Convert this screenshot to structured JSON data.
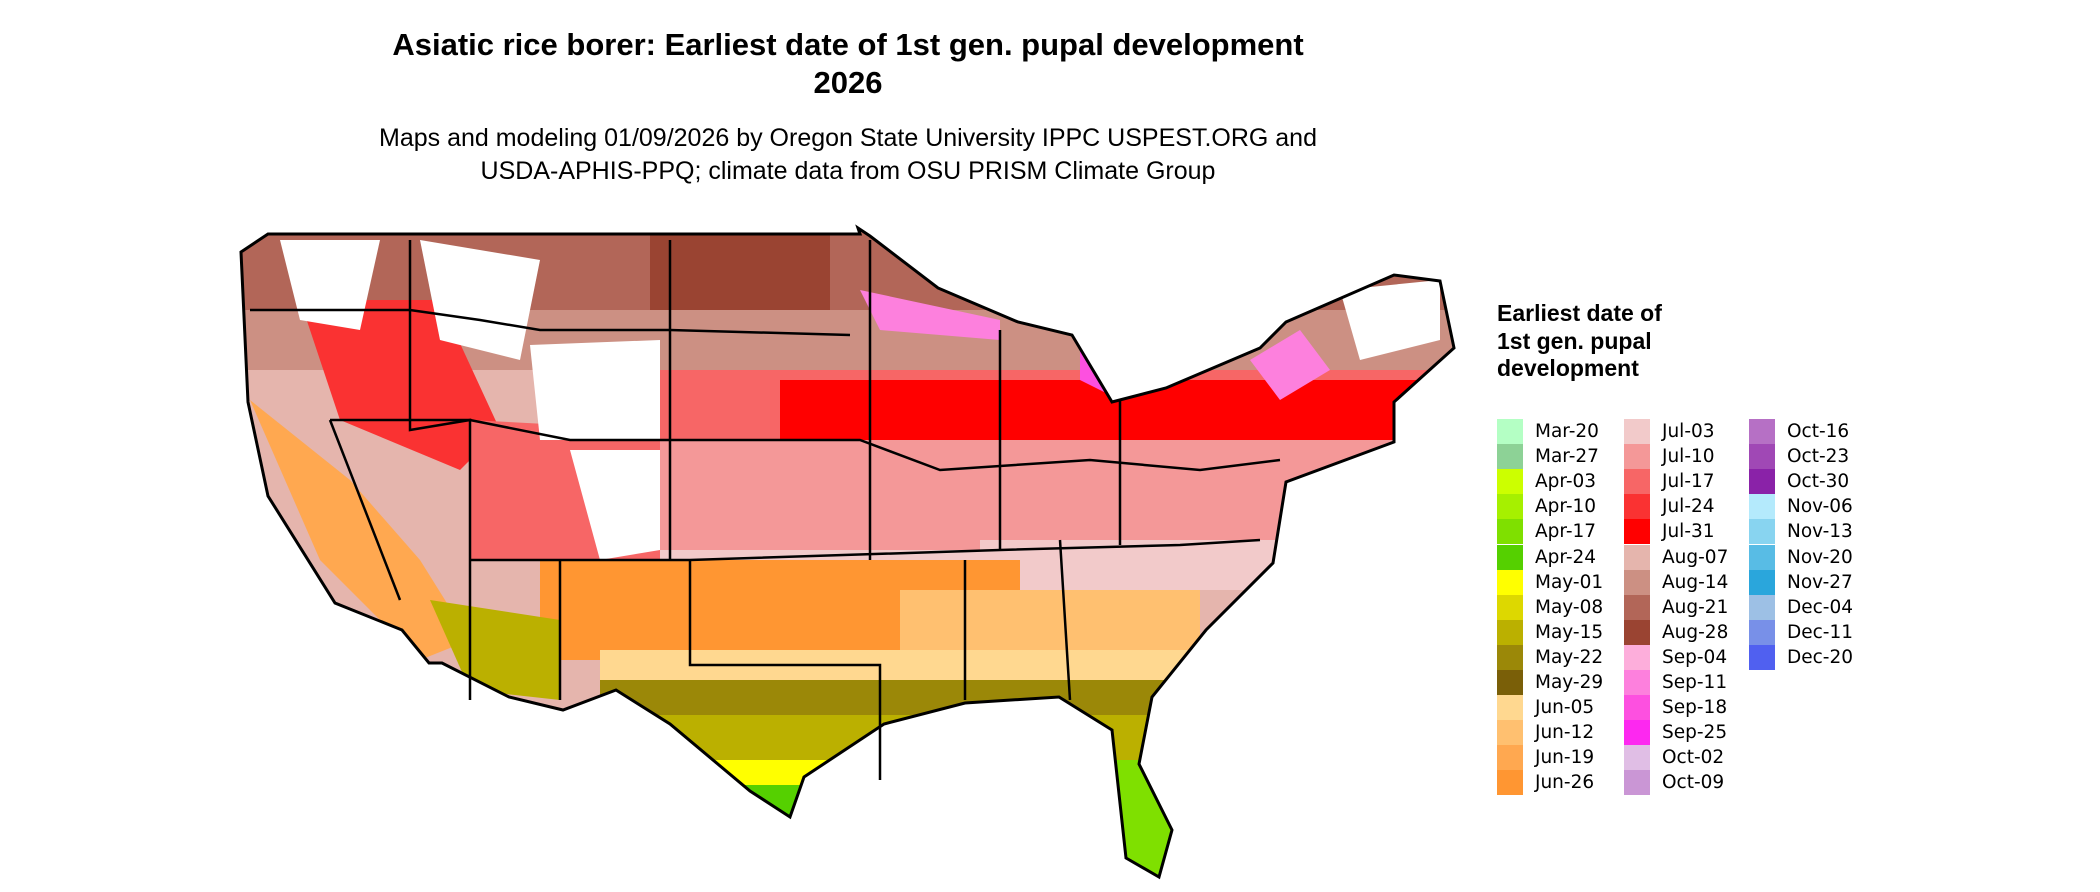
{
  "title": "Asiatic rice borer: Earliest date of 1st gen. pupal development",
  "title_year": "2026",
  "subtitle_line1": "Maps and modeling 01/09/2026 by Oregon State University IPPC USPEST.ORG and",
  "subtitle_line2": "USDA-APHIS-PPQ; climate data from OSU PRISM Climate Group",
  "legend": {
    "title": "Earliest date of 1st gen. pupal development",
    "items": [
      {
        "label": "Mar-20",
        "color": "#B4FFC4"
      },
      {
        "label": "Mar-27",
        "color": "#8DD296"
      },
      {
        "label": "Apr-03",
        "color": "#CCFF00"
      },
      {
        "label": "Apr-10",
        "color": "#A6F000"
      },
      {
        "label": "Apr-17",
        "color": "#7FE000"
      },
      {
        "label": "Apr-24",
        "color": "#55D000"
      },
      {
        "label": "May-01",
        "color": "#FFFF00"
      },
      {
        "label": "May-08",
        "color": "#DDD800"
      },
      {
        "label": "May-15",
        "color": "#BBB000"
      },
      {
        "label": "May-22",
        "color": "#9B8808"
      },
      {
        "label": "May-29",
        "color": "#7A5F08"
      },
      {
        "label": "Jun-05",
        "color": "#FFD890"
      },
      {
        "label": "Jun-12",
        "color": "#FFC070"
      },
      {
        "label": "Jun-19",
        "color": "#FFA850"
      },
      {
        "label": "Jun-26",
        "color": "#FF9632"
      },
      {
        "label": "Jul-03",
        "color": "#F2CACA"
      },
      {
        "label": "Jul-10",
        "color": "#F49898"
      },
      {
        "label": "Jul-17",
        "color": "#F76666"
      },
      {
        "label": "Jul-24",
        "color": "#FA3232"
      },
      {
        "label": "Jul-31",
        "color": "#FF0000"
      },
      {
        "label": "Aug-07",
        "color": "#E5B5AD"
      },
      {
        "label": "Aug-14",
        "color": "#CC9083"
      },
      {
        "label": "Aug-21",
        "color": "#B26658"
      },
      {
        "label": "Aug-28",
        "color": "#9A4432"
      },
      {
        "label": "Sep-04",
        "color": "#FDAEDB"
      },
      {
        "label": "Sep-11",
        "color": "#FD80DD"
      },
      {
        "label": "Sep-18",
        "color": "#FD50E0"
      },
      {
        "label": "Sep-25",
        "color": "#FD28F0"
      },
      {
        "label": "Oct-02",
        "color": "#E0BEE5"
      },
      {
        "label": "Oct-09",
        "color": "#CA96D5"
      },
      {
        "label": "Oct-16",
        "color": "#B670C5"
      },
      {
        "label": "Oct-23",
        "color": "#A048B5"
      },
      {
        "label": "Oct-30",
        "color": "#8A22A8"
      },
      {
        "label": "Nov-06",
        "color": "#B4EAFC"
      },
      {
        "label": "Nov-13",
        "color": "#88D4F0"
      },
      {
        "label": "Nov-20",
        "color": "#58BCE5"
      },
      {
        "label": "Nov-27",
        "color": "#2AA6DC"
      },
      {
        "label": "Dec-04",
        "color": "#9DC0E5"
      },
      {
        "label": "Dec-11",
        "color": "#7890E8"
      },
      {
        "label": "Dec-20",
        "color": "#5060F0"
      }
    ]
  }
}
